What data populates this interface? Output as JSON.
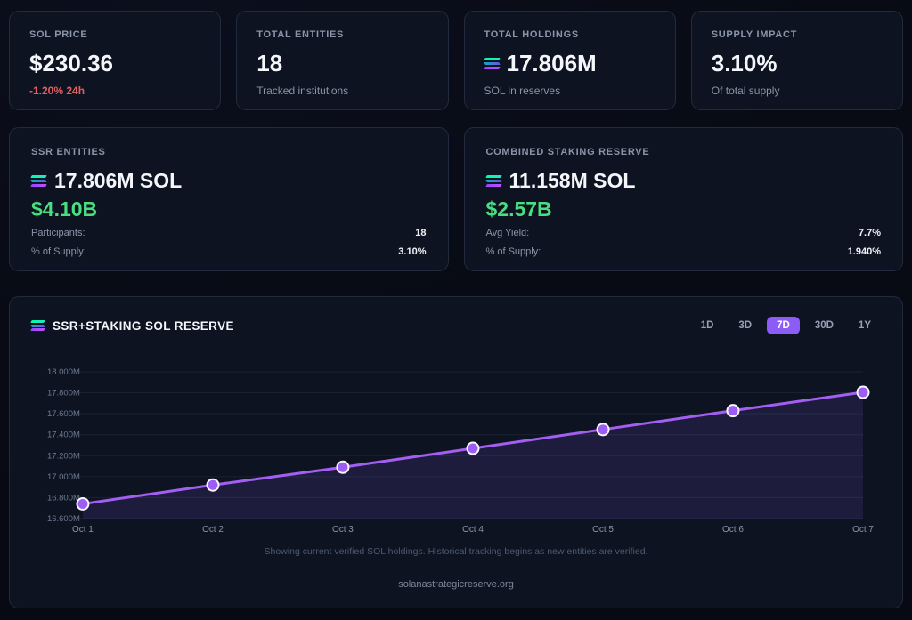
{
  "stats": [
    {
      "label": "SOL PRICE",
      "value": "$230.36",
      "sub": "-1.20% 24h",
      "has_icon": false
    },
    {
      "label": "TOTAL ENTITIES",
      "value": "18",
      "sub": "Tracked institutions",
      "has_icon": false
    },
    {
      "label": "TOTAL HOLDINGS",
      "value": "17.806M",
      "sub": "SOL in reserves",
      "has_icon": true
    },
    {
      "label": "SUPPLY IMPACT",
      "value": "3.10%",
      "sub": "Of total supply",
      "has_icon": false
    }
  ],
  "reserve_cards": [
    {
      "label": "SSR ENTITIES",
      "sol": "17.806M SOL",
      "usd": "$4.10B",
      "rows": [
        {
          "k": "Participants:",
          "v": "18"
        },
        {
          "k": "% of Supply:",
          "v": "3.10%"
        }
      ]
    },
    {
      "label": "COMBINED STAKING RESERVE",
      "sol": "11.158M SOL",
      "usd": "$2.57B",
      "rows": [
        {
          "k": "Avg Yield:",
          "v": "7.7%"
        },
        {
          "k": "% of Supply:",
          "v": "1.940%"
        }
      ]
    }
  ],
  "chart": {
    "title": "SSR+STAKING SOL RESERVE",
    "ranges": [
      "1D",
      "3D",
      "7D",
      "30D",
      "1Y"
    ],
    "active_range": "7D",
    "caption": "Showing current verified SOL holdings. Historical tracking begins as new entities are verified.",
    "footer": "solanastrategicreserve.org"
  },
  "chart_data": {
    "type": "line",
    "title": "SSR+STAKING SOL RESERVE",
    "x": [
      "Oct 1",
      "Oct 2",
      "Oct 3",
      "Oct 4",
      "Oct 5",
      "Oct 6",
      "Oct 7"
    ],
    "series": [
      {
        "name": "SSR+Staking SOL Reserve (M SOL)",
        "values": [
          16.74,
          16.92,
          17.09,
          17.27,
          17.45,
          17.63,
          17.806
        ]
      }
    ],
    "unit_suffix": "M",
    "ylim": [
      16.6,
      18.0
    ],
    "ytick_step": 0.2,
    "grid": true,
    "legend": "none",
    "line_color": "#a35ef2",
    "marker_fill": "#9b5df2",
    "marker_stroke": "#f8f6ff",
    "area_fill": "rgba(140,92,246,0.13)",
    "grid_color": "rgba(150,163,199,0.11)",
    "ytick_color": "#6e7a8f",
    "xtick_color": "#8a94a6"
  }
}
